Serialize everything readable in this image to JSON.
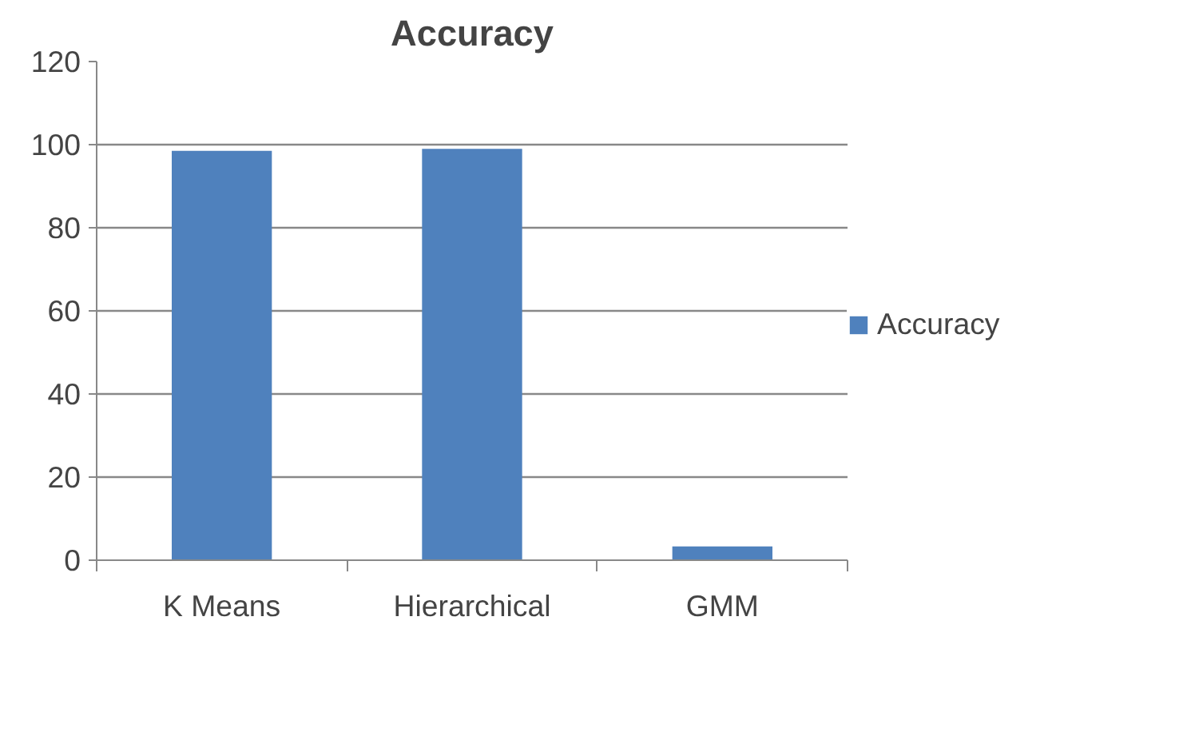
{
  "chart_data": {
    "type": "bar",
    "title": "Accuracy",
    "categories": [
      "K Means",
      "Hierarchical",
      "GMM"
    ],
    "series": [
      {
        "name": "Accuracy",
        "color": "#4f81bd",
        "values": [
          98.5,
          99,
          3.3
        ]
      }
    ],
    "ylim": [
      0,
      120
    ],
    "yticks": [
      0,
      20,
      40,
      60,
      80,
      100,
      120
    ],
    "grid": "y",
    "legend": "right"
  }
}
